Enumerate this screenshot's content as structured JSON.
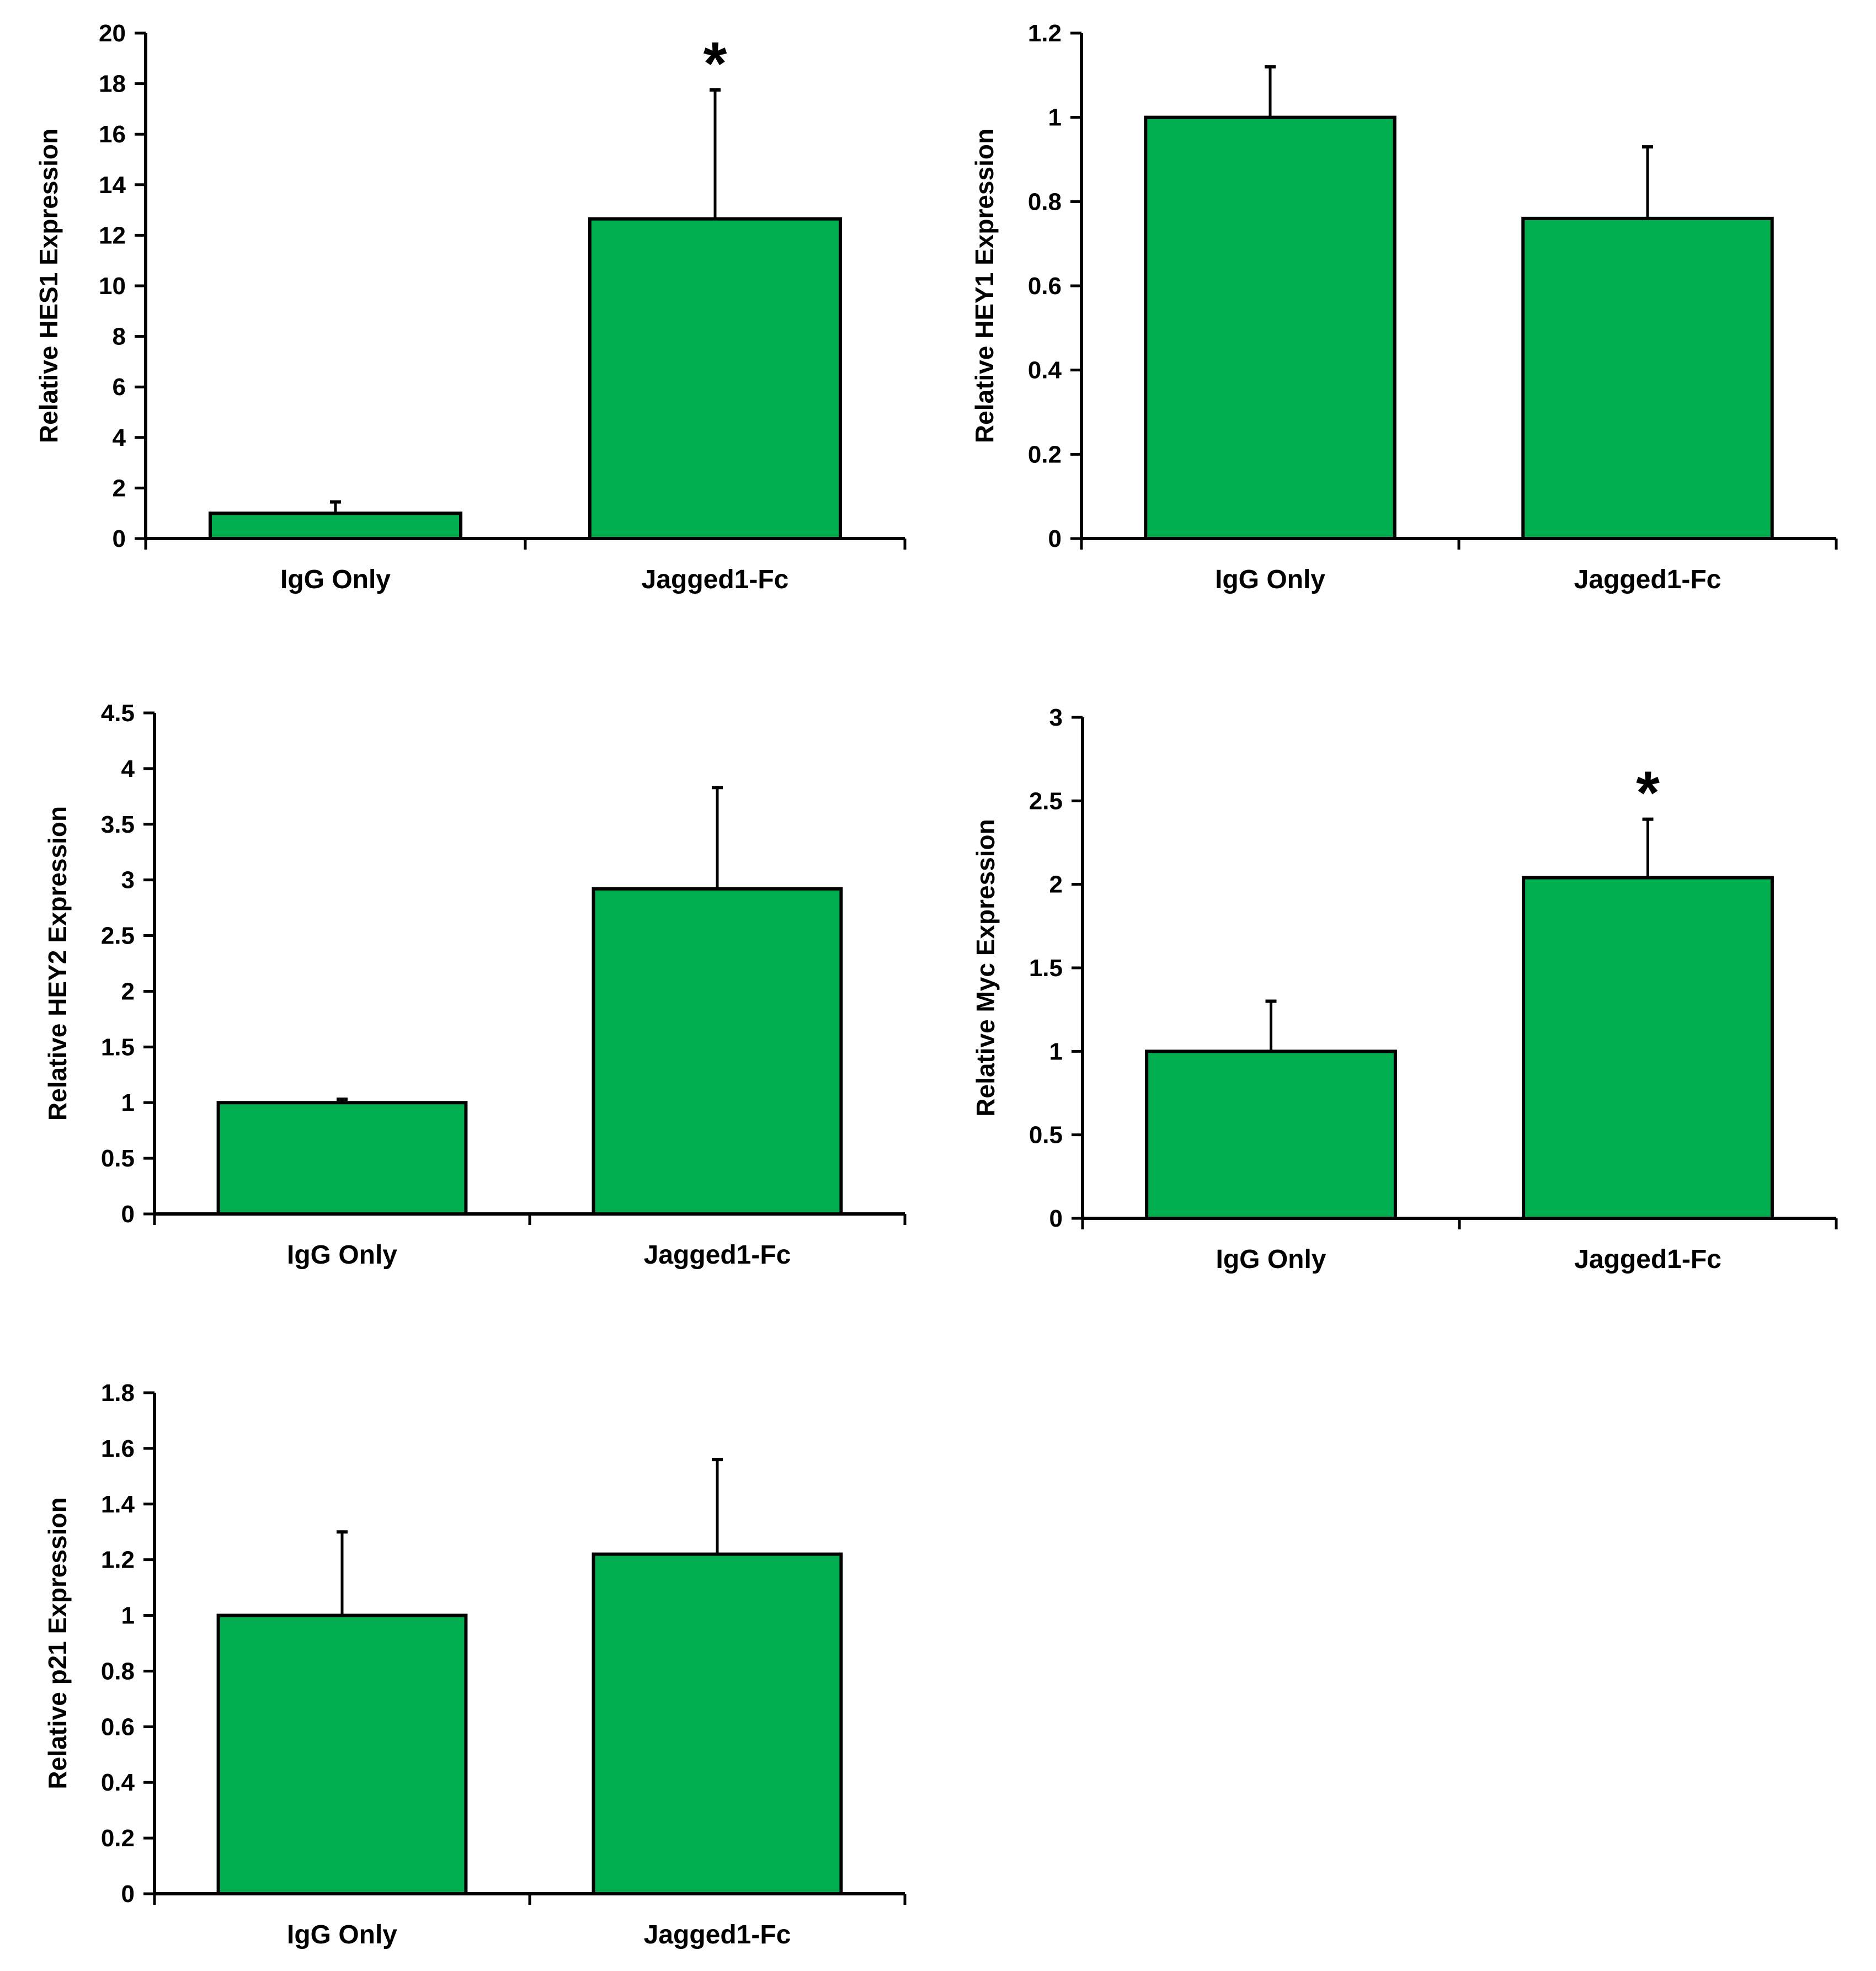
{
  "colors": {
    "bar_fill": "#00ae4f",
    "stroke": "#000000",
    "background": "#ffffff"
  },
  "chart_data": [
    {
      "type": "bar",
      "ylabel": "Relative HES1 Expression",
      "categories": [
        "IgG Only",
        "Jagged1-Fc"
      ],
      "values": [
        1.0,
        12.65
      ],
      "error_upper": [
        1.45,
        17.75
      ],
      "significance": [
        "",
        "*"
      ],
      "ylim": [
        0,
        20
      ],
      "yticks": [
        "0",
        "2",
        "4",
        "6",
        "8",
        "10",
        "12",
        "14",
        "16",
        "18",
        "20"
      ],
      "grid": false
    },
    {
      "type": "bar",
      "ylabel": "Relative HEY1 Expression",
      "categories": [
        "IgG Only",
        "Jagged1-Fc"
      ],
      "values": [
        1.0,
        0.76
      ],
      "error_upper": [
        1.12,
        0.93
      ],
      "significance": [
        "",
        ""
      ],
      "ylim": [
        0,
        1.2
      ],
      "yticks": [
        "0",
        "0.2",
        "0.4",
        "0.6",
        "0.8",
        "1",
        "1.2"
      ],
      "grid": false
    },
    {
      "type": "bar",
      "ylabel": "Relative HEY2 Expression",
      "categories": [
        "IgG Only",
        "Jagged1-Fc"
      ],
      "values": [
        1.0,
        2.92
      ],
      "error_upper": [
        1.03,
        3.83
      ],
      "significance": [
        "",
        ""
      ],
      "ylim": [
        0,
        4.5
      ],
      "yticks": [
        "0",
        "0.5",
        "1",
        "1.5",
        "2",
        "2.5",
        "3",
        "3.5",
        "4",
        "4.5"
      ],
      "grid": false
    },
    {
      "type": "bar",
      "ylabel": "Relative Myc Expression",
      "categories": [
        "IgG Only",
        "Jagged1-Fc"
      ],
      "values": [
        1.0,
        2.04
      ],
      "error_upper": [
        1.3,
        2.39
      ],
      "significance": [
        "",
        "*"
      ],
      "ylim": [
        0,
        3
      ],
      "yticks": [
        "0",
        "0.5",
        "1",
        "1.5",
        "2",
        "2.5",
        "3"
      ],
      "grid": false
    },
    {
      "type": "bar",
      "ylabel": "Relative p21 Expression",
      "categories": [
        "IgG Only",
        "Jagged1-Fc"
      ],
      "values": [
        1.0,
        1.22
      ],
      "error_upper": [
        1.3,
        1.56
      ],
      "significance": [
        "",
        ""
      ],
      "ylim": [
        0,
        1.8
      ],
      "yticks": [
        "0",
        "0.2",
        "0.4",
        "0.6",
        "0.8",
        "1",
        "1.2",
        "1.4",
        "1.6",
        "1.8"
      ],
      "grid": false
    }
  ]
}
